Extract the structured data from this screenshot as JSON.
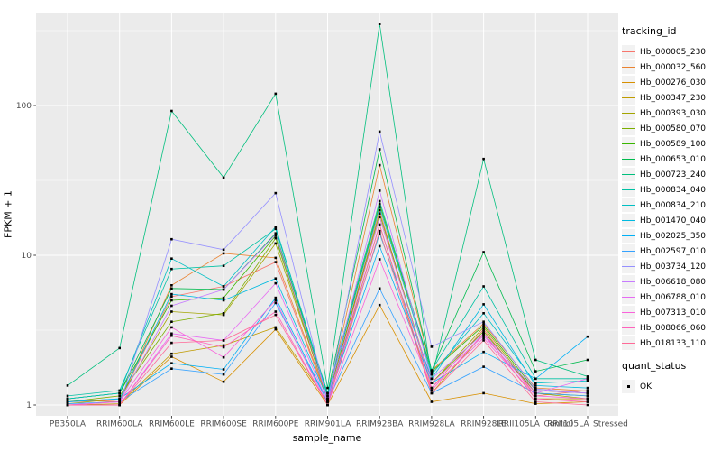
{
  "chart_data": {
    "type": "line",
    "title": "",
    "xlabel": "sample_name",
    "ylabel": "FPKM + 1",
    "y_scale": "log10",
    "y_ticks": [
      1,
      10,
      100
    ],
    "y_minor_ticks": [
      3.162,
      31.623,
      316.228
    ],
    "ylim": [
      1,
      420
    ],
    "grid": "on",
    "panel_bg": "#EBEBEB",
    "grid_color": "#FFFFFF",
    "point_shape": "small-black-square",
    "legend_position": "right",
    "legend_title": "tracking_id",
    "legend2_title": "quant_status",
    "legend2_entries": [
      "OK"
    ],
    "categories": [
      "PB350LA",
      "RRIM600LA",
      "RRIM600LE",
      "RRIM600SE",
      "RRIM600PE",
      "RRIM901LA",
      "RRIM928BA",
      "RRIM928LA",
      "RRIM928LE",
      "RRII105LA_Control",
      "RRII105LA_Stressed"
    ],
    "series": [
      {
        "name": "Hb_000005_230",
        "color": "#F8766D",
        "values": [
          1.05,
          1.08,
          5.3,
          6.2,
          9.0,
          1.08,
          20,
          1.3,
          3.2,
          1.15,
          1.25
        ]
      },
      {
        "name": "Hb_000032_560",
        "color": "#EA8331",
        "values": [
          1.08,
          1.05,
          6.3,
          10.3,
          9.6,
          1.1,
          40,
          1.7,
          3.5,
          1.3,
          1.24
        ]
      },
      {
        "name": "Hb_000276_030",
        "color": "#D89000",
        "values": [
          1.0,
          1.0,
          2.1,
          1.43,
          3.2,
          1.0,
          4.65,
          1.05,
          1.2,
          1.02,
          1.05
        ]
      },
      {
        "name": "Hb_000347_230",
        "color": "#C09B00",
        "values": [
          1.0,
          1.02,
          2.2,
          2.5,
          3.3,
          1.05,
          16,
          1.2,
          3.0,
          1.1,
          1.1
        ]
      },
      {
        "name": "Hb_000393_030",
        "color": "#A3A500",
        "values": [
          1.02,
          1.1,
          4.2,
          4.0,
          12.0,
          1.1,
          18,
          1.4,
          3.3,
          1.2,
          1.1
        ]
      },
      {
        "name": "Hb_000580_070",
        "color": "#7CAE00",
        "values": [
          1.05,
          1.15,
          3.6,
          4.1,
          13.0,
          1.1,
          19,
          1.4,
          3.1,
          1.2,
          1.15
        ]
      },
      {
        "name": "Hb_000589_100",
        "color": "#39B600",
        "values": [
          1.1,
          1.2,
          5.0,
          5.2,
          13.5,
          1.15,
          22,
          1.67,
          3.4,
          1.25,
          1.2
        ]
      },
      {
        "name": "Hb_000653_010",
        "color": "#00BB4E",
        "values": [
          1.1,
          1.2,
          6.0,
          5.9,
          14.0,
          1.2,
          51,
          1.7,
          10.5,
          1.68,
          2.0
        ]
      },
      {
        "name": "Hb_000723_240",
        "color": "#00BF7D",
        "values": [
          1.35,
          2.4,
          92,
          33,
          120,
          1.3,
          350,
          1.5,
          44,
          2.0,
          1.55
        ]
      },
      {
        "name": "Hb_000834_040",
        "color": "#00C1A3",
        "values": [
          1.15,
          1.25,
          8.1,
          8.5,
          15.0,
          1.2,
          23,
          1.7,
          6.2,
          1.5,
          1.5
        ]
      },
      {
        "name": "Hb_000834_210",
        "color": "#00BFC4",
        "values": [
          1.1,
          1.2,
          9.5,
          6.2,
          15.5,
          1.15,
          21,
          1.6,
          4.1,
          1.4,
          1.45
        ]
      },
      {
        "name": "Hb_001470_040",
        "color": "#00BAE0",
        "values": [
          1.05,
          1.1,
          5.5,
          5.0,
          7.0,
          1.1,
          14,
          1.5,
          4.7,
          1.35,
          1.3
        ]
      },
      {
        "name": "Hb_002025_350",
        "color": "#00B0F6",
        "values": [
          1.05,
          1.1,
          1.9,
          1.73,
          5.2,
          1.05,
          11.5,
          1.4,
          2.26,
          1.5,
          2.86
        ]
      },
      {
        "name": "Hb_002597_010",
        "color": "#35A2FF",
        "values": [
          1.02,
          1.05,
          1.75,
          1.6,
          4.8,
          1.05,
          6.0,
          1.2,
          1.8,
          1.2,
          1.15
        ]
      },
      {
        "name": "Hb_003734_120",
        "color": "#9590FF",
        "values": [
          1.0,
          1.0,
          12.8,
          10.9,
          26,
          1.05,
          67,
          2.45,
          3.6,
          1.28,
          1.2
        ]
      },
      {
        "name": "Hb_006618_080",
        "color": "#C77CFF",
        "values": [
          1.0,
          1.05,
          4.6,
          5.9,
          13.8,
          1.1,
          27,
          1.5,
          3.0,
          1.25,
          1.2
        ]
      },
      {
        "name": "Hb_006788_010",
        "color": "#E76BF3",
        "values": [
          1.0,
          1.0,
          3.0,
          2.7,
          6.5,
          1.05,
          18,
          1.4,
          2.9,
          1.2,
          1.5
        ]
      },
      {
        "name": "Hb_007313_010",
        "color": "#FA62DB",
        "values": [
          1.0,
          1.05,
          3.3,
          2.08,
          5.0,
          1.0,
          9.4,
          1.3,
          2.8,
          1.15,
          1.1
        ]
      },
      {
        "name": "Hb_008066_060",
        "color": "#FF62BC",
        "values": [
          1.0,
          1.0,
          2.9,
          2.43,
          4.2,
          1.0,
          16,
          1.25,
          3.0,
          1.1,
          1.05
        ]
      },
      {
        "name": "Hb_018133_110",
        "color": "#FF6A98",
        "values": [
          1.0,
          1.0,
          2.6,
          2.7,
          4.0,
          1.0,
          14.5,
          1.2,
          2.7,
          1.05,
          1.0
        ]
      }
    ]
  }
}
